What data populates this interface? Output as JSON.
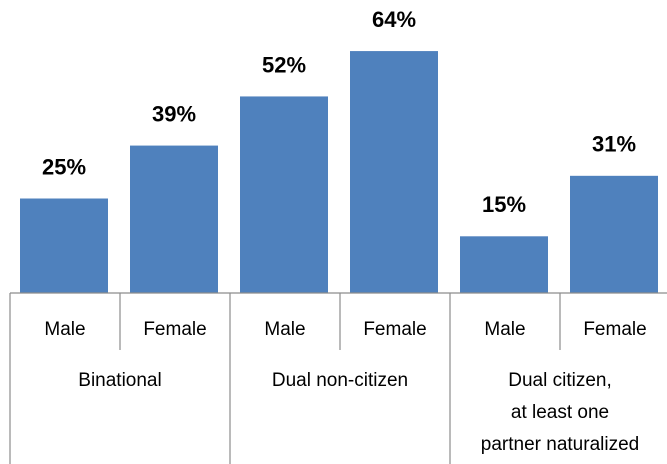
{
  "chart_data": {
    "type": "bar",
    "color": "#4f81bd",
    "groups": [
      {
        "name": "Binational",
        "categories": [
          "Male",
          "Female"
        ],
        "values": [
          25,
          39
        ],
        "value_labels": [
          "25%",
          "39%"
        ]
      },
      {
        "name": "Dual non-citizen",
        "categories": [
          "Male",
          "Female"
        ],
        "values": [
          52,
          64
        ],
        "value_labels": [
          "52%",
          "64%"
        ]
      },
      {
        "name": "Dual citizen,\nat least one\npartner naturalized",
        "categories": [
          "Male",
          "Female"
        ],
        "values": [
          15,
          31
        ],
        "value_labels": [
          "15%",
          "31%"
        ]
      }
    ]
  }
}
